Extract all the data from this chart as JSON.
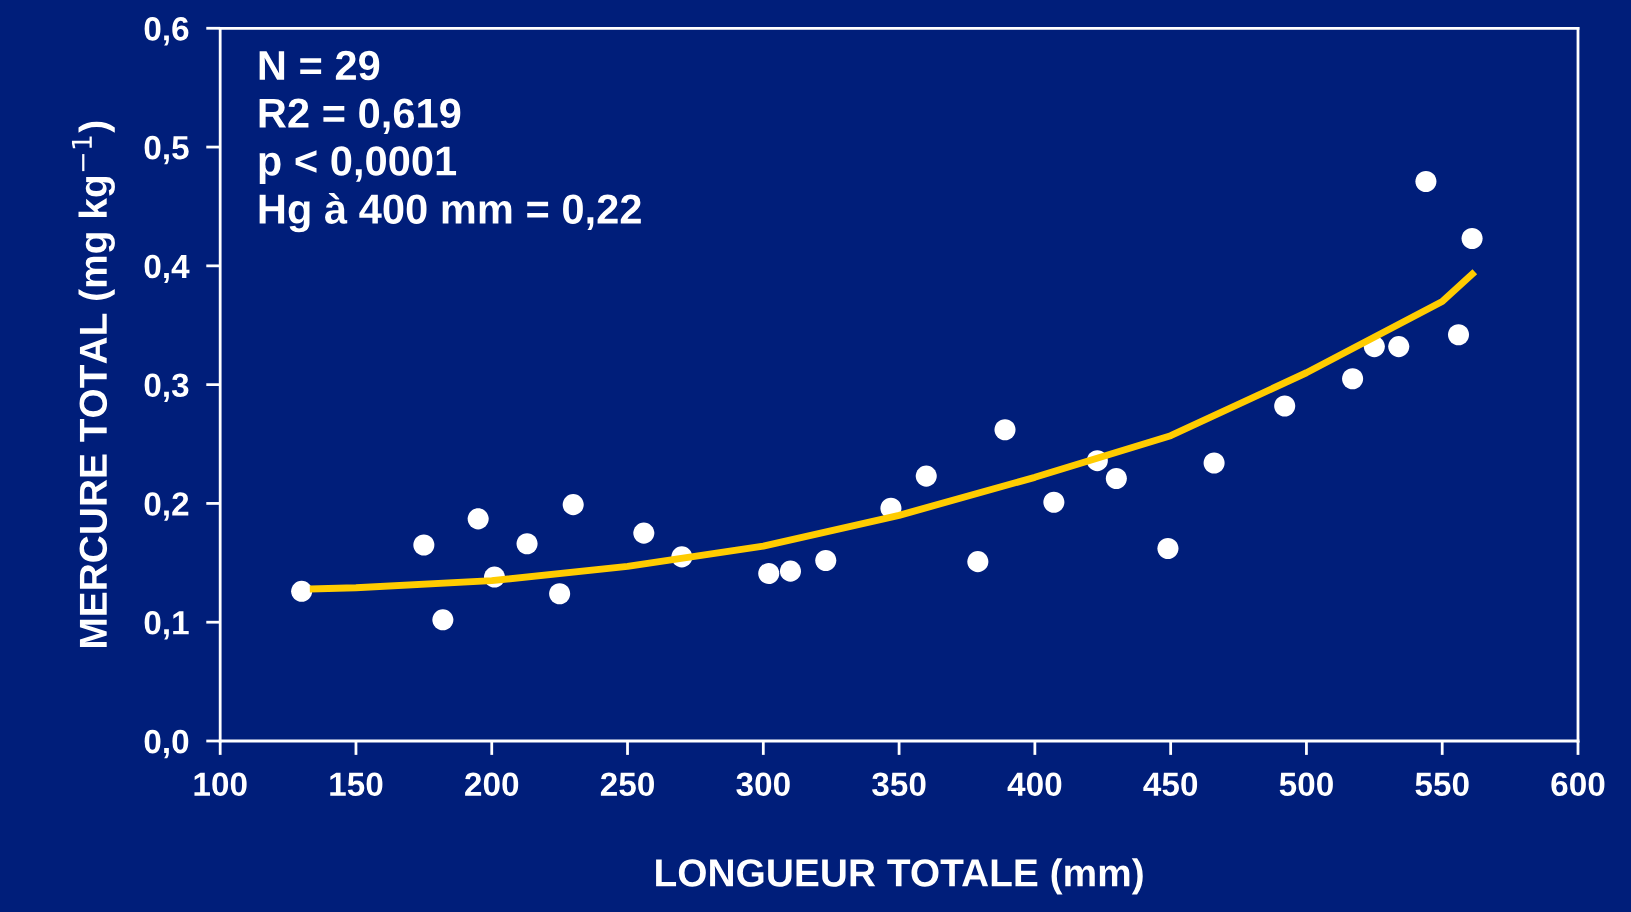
{
  "chart_data": {
    "type": "scatter",
    "xlabel": "LONGUEUR TOTALE (mm)",
    "ylabel": "MERCURE TOTAL (mg kg$^{−1}$)",
    "xlim": [
      100,
      600
    ],
    "xticks": [
      100,
      150,
      200,
      250,
      300,
      350,
      400,
      450,
      500,
      550,
      600
    ],
    "ylim": [
      0,
      0.6
    ],
    "yticks": [
      {
        "value": 0,
        "label": "0,0"
      },
      {
        "value": 0.1,
        "label": "0,1"
      },
      {
        "value": 0.2,
        "label": "0,2"
      },
      {
        "value": 0.3,
        "label": "0,3"
      },
      {
        "value": 0.4,
        "label": "0,4"
      },
      {
        "value": 0.5,
        "label": "0,5"
      },
      {
        "value": 0.6,
        "label": "0,6"
      }
    ],
    "grid": false,
    "legend": false,
    "marker": "circle",
    "annotations": [
      "N = 29",
      "R2 = 0,619",
      "p < 0,0001",
      "Hg à 400 mm = 0,22"
    ],
    "series": [
      {
        "color": "#ffffff",
        "x": [
          130,
          175,
          182,
          195,
          201,
          213,
          225,
          230,
          256,
          270,
          302,
          310,
          323,
          347,
          360,
          379,
          389,
          407,
          423,
          430,
          449,
          466,
          492,
          517,
          525,
          534,
          544,
          556,
          561
        ],
        "values": [
          0.126,
          0.165,
          0.102,
          0.187,
          0.138,
          0.166,
          0.124,
          0.199,
          0.175,
          0.155,
          0.141,
          0.143,
          0.152,
          0.196,
          0.223,
          0.151,
          0.262,
          0.201,
          0.236,
          0.221,
          0.162,
          0.234,
          0.282,
          0.305,
          0.332,
          0.332,
          0.471,
          0.342,
          0.423
        ]
      },
      {
        "type": "line",
        "color": "#ffcc00",
        "marker": "none",
        "line_style": "solid",
        "x": [
          133,
          150,
          200,
          250,
          300,
          350,
          400,
          450,
          500,
          550,
          562
        ],
        "values": [
          0.128,
          0.129,
          0.135,
          0.147,
          0.164,
          0.19,
          0.222,
          0.257,
          0.31,
          0.37,
          0.395
        ]
      }
    ]
  }
}
